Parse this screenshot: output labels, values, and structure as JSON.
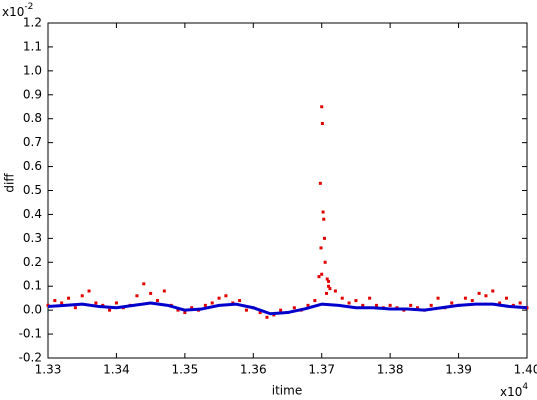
{
  "chart_data": {
    "type": "scatter",
    "x_label": "itime",
    "y_label": "diff",
    "x_multiplier": {
      "base": "x10",
      "exponent": "4"
    },
    "y_multiplier": {
      "base": "x10",
      "exponent": "-2"
    },
    "xlim": [
      1.33,
      1.4
    ],
    "ylim": [
      -0.2,
      1.2
    ],
    "xticks": [
      1.33,
      1.34,
      1.35,
      1.36,
      1.37,
      1.38,
      1.39,
      {
        "value": 1.4,
        "label": "1.40"
      }
    ],
    "yticks": [
      -0.2,
      -0.1,
      {
        "value": 0,
        "label": "0.0"
      },
      0.1,
      0.2,
      0.3,
      0.4,
      0.5,
      0.6,
      0.7,
      0.8,
      0.9,
      {
        "value": 1,
        "label": "1.0"
      },
      1.1,
      1.2
    ],
    "grid": false,
    "series": [
      {
        "color": "#e00000",
        "style": "markers",
        "x": [
          1.33,
          1.331,
          1.332,
          1.333,
          1.334,
          1.335,
          1.336,
          1.337,
          1.338,
          1.339,
          1.34,
          1.341,
          1.342,
          1.343,
          1.344,
          1.345,
          1.346,
          1.347,
          1.348,
          1.349,
          1.35,
          1.351,
          1.352,
          1.353,
          1.354,
          1.355,
          1.356,
          1.357,
          1.358,
          1.359,
          1.36,
          1.361,
          1.362,
          1.363,
          1.364,
          1.365,
          1.366,
          1.367,
          1.368,
          1.369,
          1.37,
          1.371,
          1.372,
          1.373,
          1.374,
          1.375,
          1.376,
          1.377,
          1.378,
          1.379,
          1.38,
          1.381,
          1.382,
          1.383,
          1.384,
          1.385,
          1.386,
          1.387,
          1.388,
          1.389,
          1.39,
          1.391,
          1.392,
          1.393,
          1.394,
          1.395,
          1.396,
          1.397,
          1.398,
          1.399,
          1.4,
          1.3698,
          1.3699,
          1.37,
          1.3701,
          1.3702,
          1.3703,
          1.3704,
          1.3705,
          1.3696,
          1.3708,
          1.371,
          1.3712,
          1.3707
        ],
        "values": [
          0.02,
          0.04,
          0.03,
          0.05,
          0.01,
          0.06,
          0.08,
          0.03,
          0.02,
          0.0,
          0.03,
          0.01,
          0.02,
          0.06,
          0.11,
          0.07,
          0.04,
          0.08,
          0.02,
          0.0,
          -0.01,
          0.01,
          0.0,
          0.02,
          0.03,
          0.05,
          0.06,
          0.03,
          0.04,
          0.0,
          0.01,
          -0.01,
          -0.03,
          -0.02,
          0.0,
          -0.01,
          0.01,
          0.0,
          0.02,
          0.04,
          0.15,
          0.12,
          0.08,
          0.05,
          0.03,
          0.04,
          0.02,
          0.05,
          0.02,
          0.01,
          0.02,
          0.01,
          0.0,
          0.02,
          0.01,
          0.0,
          0.02,
          0.05,
          0.01,
          0.03,
          0.02,
          0.05,
          0.04,
          0.07,
          0.06,
          0.08,
          0.03,
          0.05,
          0.02,
          0.03,
          0.01,
          0.53,
          0.26,
          0.85,
          0.78,
          0.41,
          0.38,
          0.3,
          0.2,
          0.14,
          0.13,
          0.1,
          0.09,
          0.07
        ]
      },
      {
        "color": "#0000cc",
        "style": "line",
        "x": [
          1.33,
          1.3325,
          1.335,
          1.3375,
          1.34,
          1.3425,
          1.345,
          1.3475,
          1.35,
          1.3525,
          1.355,
          1.3575,
          1.36,
          1.3625,
          1.365,
          1.3675,
          1.37,
          1.3725,
          1.375,
          1.3775,
          1.38,
          1.3825,
          1.385,
          1.3875,
          1.39,
          1.3925,
          1.395,
          1.3975,
          1.4
        ],
        "values": [
          0.015,
          0.02,
          0.025,
          0.015,
          0.01,
          0.02,
          0.03,
          0.02,
          0.0,
          0.005,
          0.02,
          0.025,
          0.01,
          -0.015,
          -0.01,
          0.005,
          0.025,
          0.02,
          0.01,
          0.01,
          0.005,
          0.005,
          0.0,
          0.01,
          0.02,
          0.025,
          0.025,
          0.015,
          0.01
        ]
      }
    ]
  }
}
